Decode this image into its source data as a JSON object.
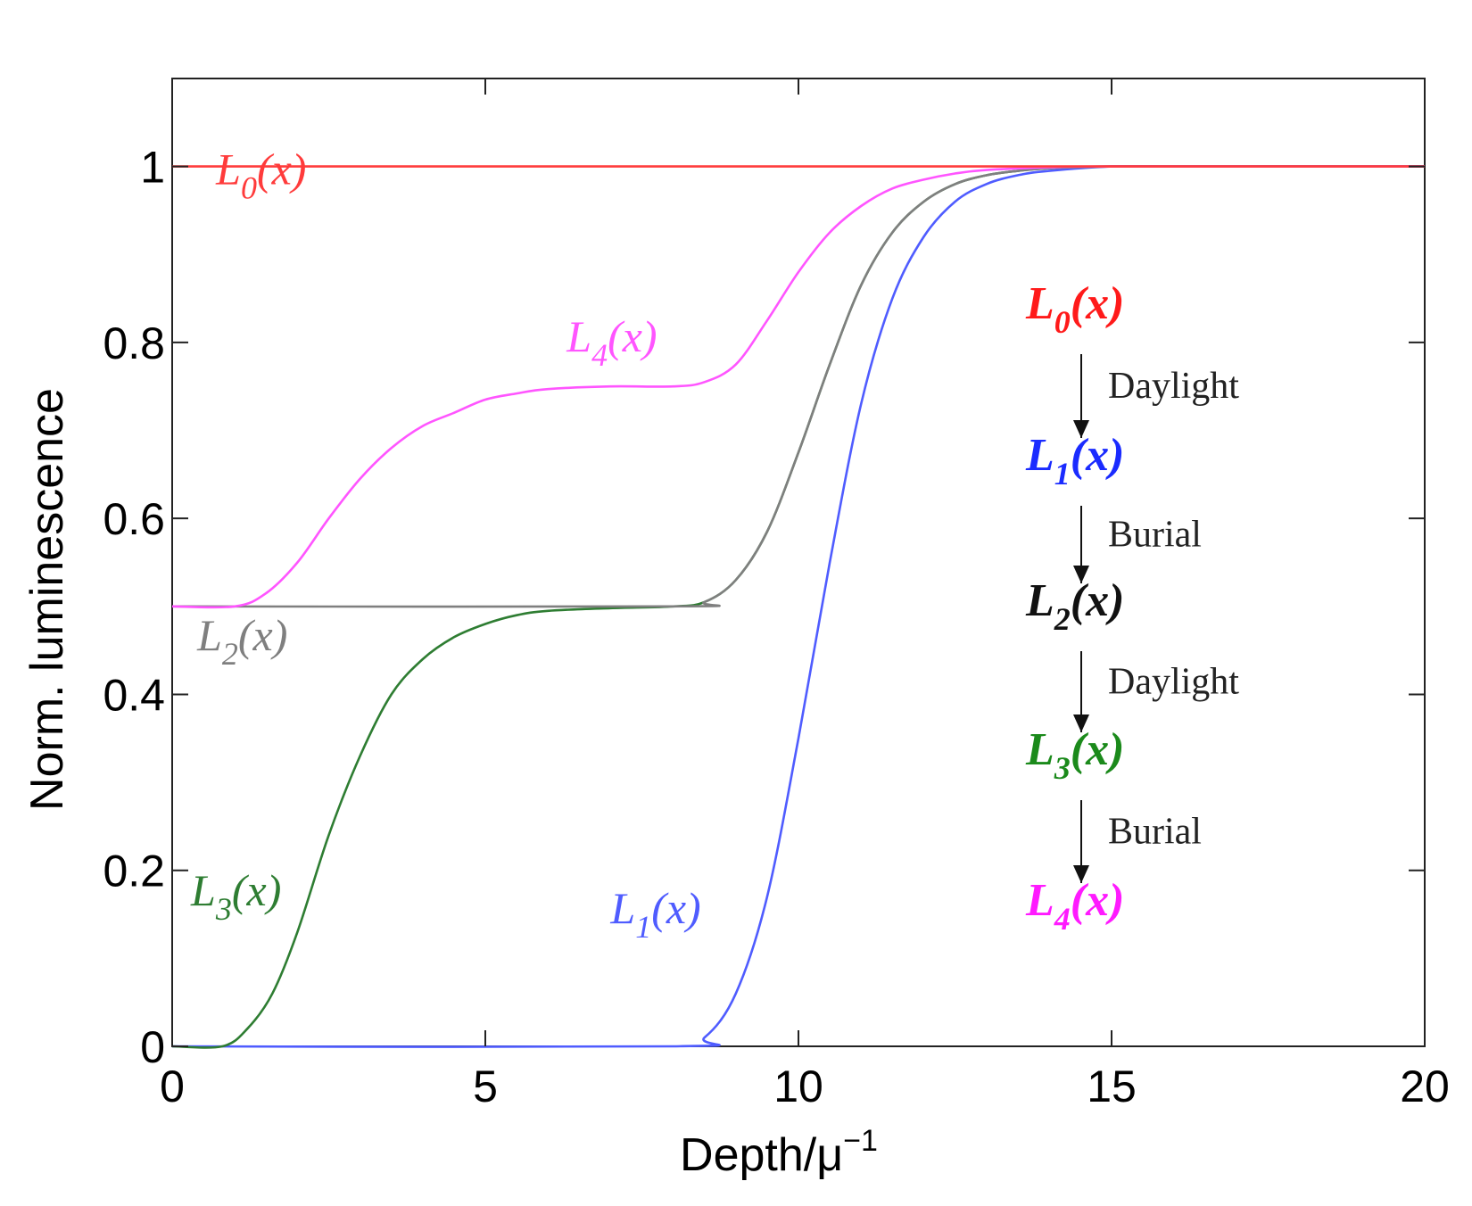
{
  "chart_data": {
    "type": "line",
    "title": "",
    "xlabel": "Depth/μ",
    "xlabel_superscript": "−1",
    "ylabel": "Norm. luminescence",
    "xlim": [
      0,
      20
    ],
    "ylim": [
      0,
      1.1
    ],
    "xticks": [
      0,
      5,
      10,
      15,
      20
    ],
    "yticks": [
      0,
      0.2,
      0.4,
      0.6,
      0.8,
      1
    ],
    "ytick_labels": [
      "0",
      "0.2",
      "0.4",
      "0.6",
      "0.8",
      "1"
    ],
    "grid": false,
    "series": [
      {
        "name": "L0(x)",
        "label_main": "L",
        "label_sub": "0",
        "label_tail": "(x)",
        "color": "#ff3b3b",
        "label_at": [
          0.7,
          0.98
        ],
        "x": [
          0,
          20
        ],
        "y": [
          1,
          1
        ]
      },
      {
        "name": "L1(x)",
        "label_main": "L",
        "label_sub": "1",
        "label_tail": "(x)",
        "color": "#4f5cff",
        "label_at": [
          7.0,
          0.14
        ],
        "x": [
          0,
          8,
          8.5,
          9,
          9.5,
          10,
          10.5,
          11,
          11.5,
          12,
          12.5,
          13,
          13.5,
          14,
          15,
          16,
          17,
          20
        ],
        "y": [
          0,
          0,
          0.01,
          0.06,
          0.17,
          0.35,
          0.55,
          0.73,
          0.85,
          0.92,
          0.96,
          0.98,
          0.99,
          0.995,
          1,
          1,
          1,
          1
        ]
      },
      {
        "name": "L2(x)",
        "label_main": "L",
        "label_sub": "2",
        "label_tail": "(x)",
        "color": "#7f7f7f",
        "label_at": [
          0.4,
          0.45
        ],
        "x": [
          0,
          8,
          8.5,
          9,
          9.5,
          10,
          10.5,
          11,
          11.5,
          12,
          12.5,
          13,
          13.5,
          14,
          15,
          16,
          17,
          20
        ],
        "y": [
          0.5,
          0.5,
          0.505,
          0.53,
          0.585,
          0.675,
          0.775,
          0.865,
          0.925,
          0.96,
          0.98,
          0.99,
          0.995,
          0.998,
          1,
          1,
          1,
          1
        ]
      },
      {
        "name": "L3(x)",
        "label_main": "L",
        "label_sub": "3",
        "label_tail": "(x)",
        "color": "#2e7d32",
        "label_at": [
          0.3,
          0.16
        ],
        "x": [
          0,
          0.8,
          1.2,
          1.6,
          2,
          2.5,
          3,
          3.5,
          4,
          4.5,
          5,
          5.5,
          6,
          7,
          8,
          8.5,
          9,
          9.5,
          10,
          10.5,
          11,
          11.5,
          12,
          12.5,
          13,
          13.5,
          14,
          15,
          20
        ],
        "y": [
          0,
          0,
          0.02,
          0.06,
          0.13,
          0.24,
          0.33,
          0.4,
          0.44,
          0.465,
          0.48,
          0.49,
          0.495,
          0.498,
          0.5,
          0.505,
          0.53,
          0.585,
          0.675,
          0.775,
          0.865,
          0.925,
          0.96,
          0.98,
          0.99,
          0.995,
          0.998,
          1,
          1
        ]
      },
      {
        "name": "L4(x)",
        "label_main": "L",
        "label_sub": "4",
        "label_tail": "(x)",
        "color": "#ff55ff",
        "label_at": [
          6.3,
          0.79
        ],
        "x": [
          0,
          1,
          1.5,
          2,
          2.5,
          3,
          3.5,
          4,
          4.5,
          5,
          5.5,
          6,
          7,
          8,
          8.5,
          9,
          9.5,
          10,
          10.5,
          11,
          11.5,
          12,
          12.5,
          13,
          14,
          15,
          20
        ],
        "y": [
          0.5,
          0.5,
          0.515,
          0.55,
          0.6,
          0.645,
          0.68,
          0.705,
          0.72,
          0.735,
          0.742,
          0.747,
          0.75,
          0.75,
          0.755,
          0.775,
          0.825,
          0.88,
          0.925,
          0.955,
          0.975,
          0.985,
          0.992,
          0.996,
          0.999,
          1,
          1
        ]
      }
    ],
    "sequence": {
      "labels": [
        {
          "main": "L",
          "sub": "0",
          "tail": "(x)",
          "color": "#ff1a1a"
        },
        {
          "main": "L",
          "sub": "1",
          "tail": "(x)",
          "color": "#1a2bff"
        },
        {
          "main": "L",
          "sub": "2",
          "tail": "(x)",
          "color": "#111111"
        },
        {
          "main": "L",
          "sub": "3",
          "tail": "(x)",
          "color": "#1b8a1b"
        },
        {
          "main": "L",
          "sub": "4",
          "tail": "(x)",
          "color": "#ff1aff"
        }
      ],
      "steps": [
        "Daylight",
        "Burial",
        "Daylight",
        "Burial"
      ]
    }
  }
}
